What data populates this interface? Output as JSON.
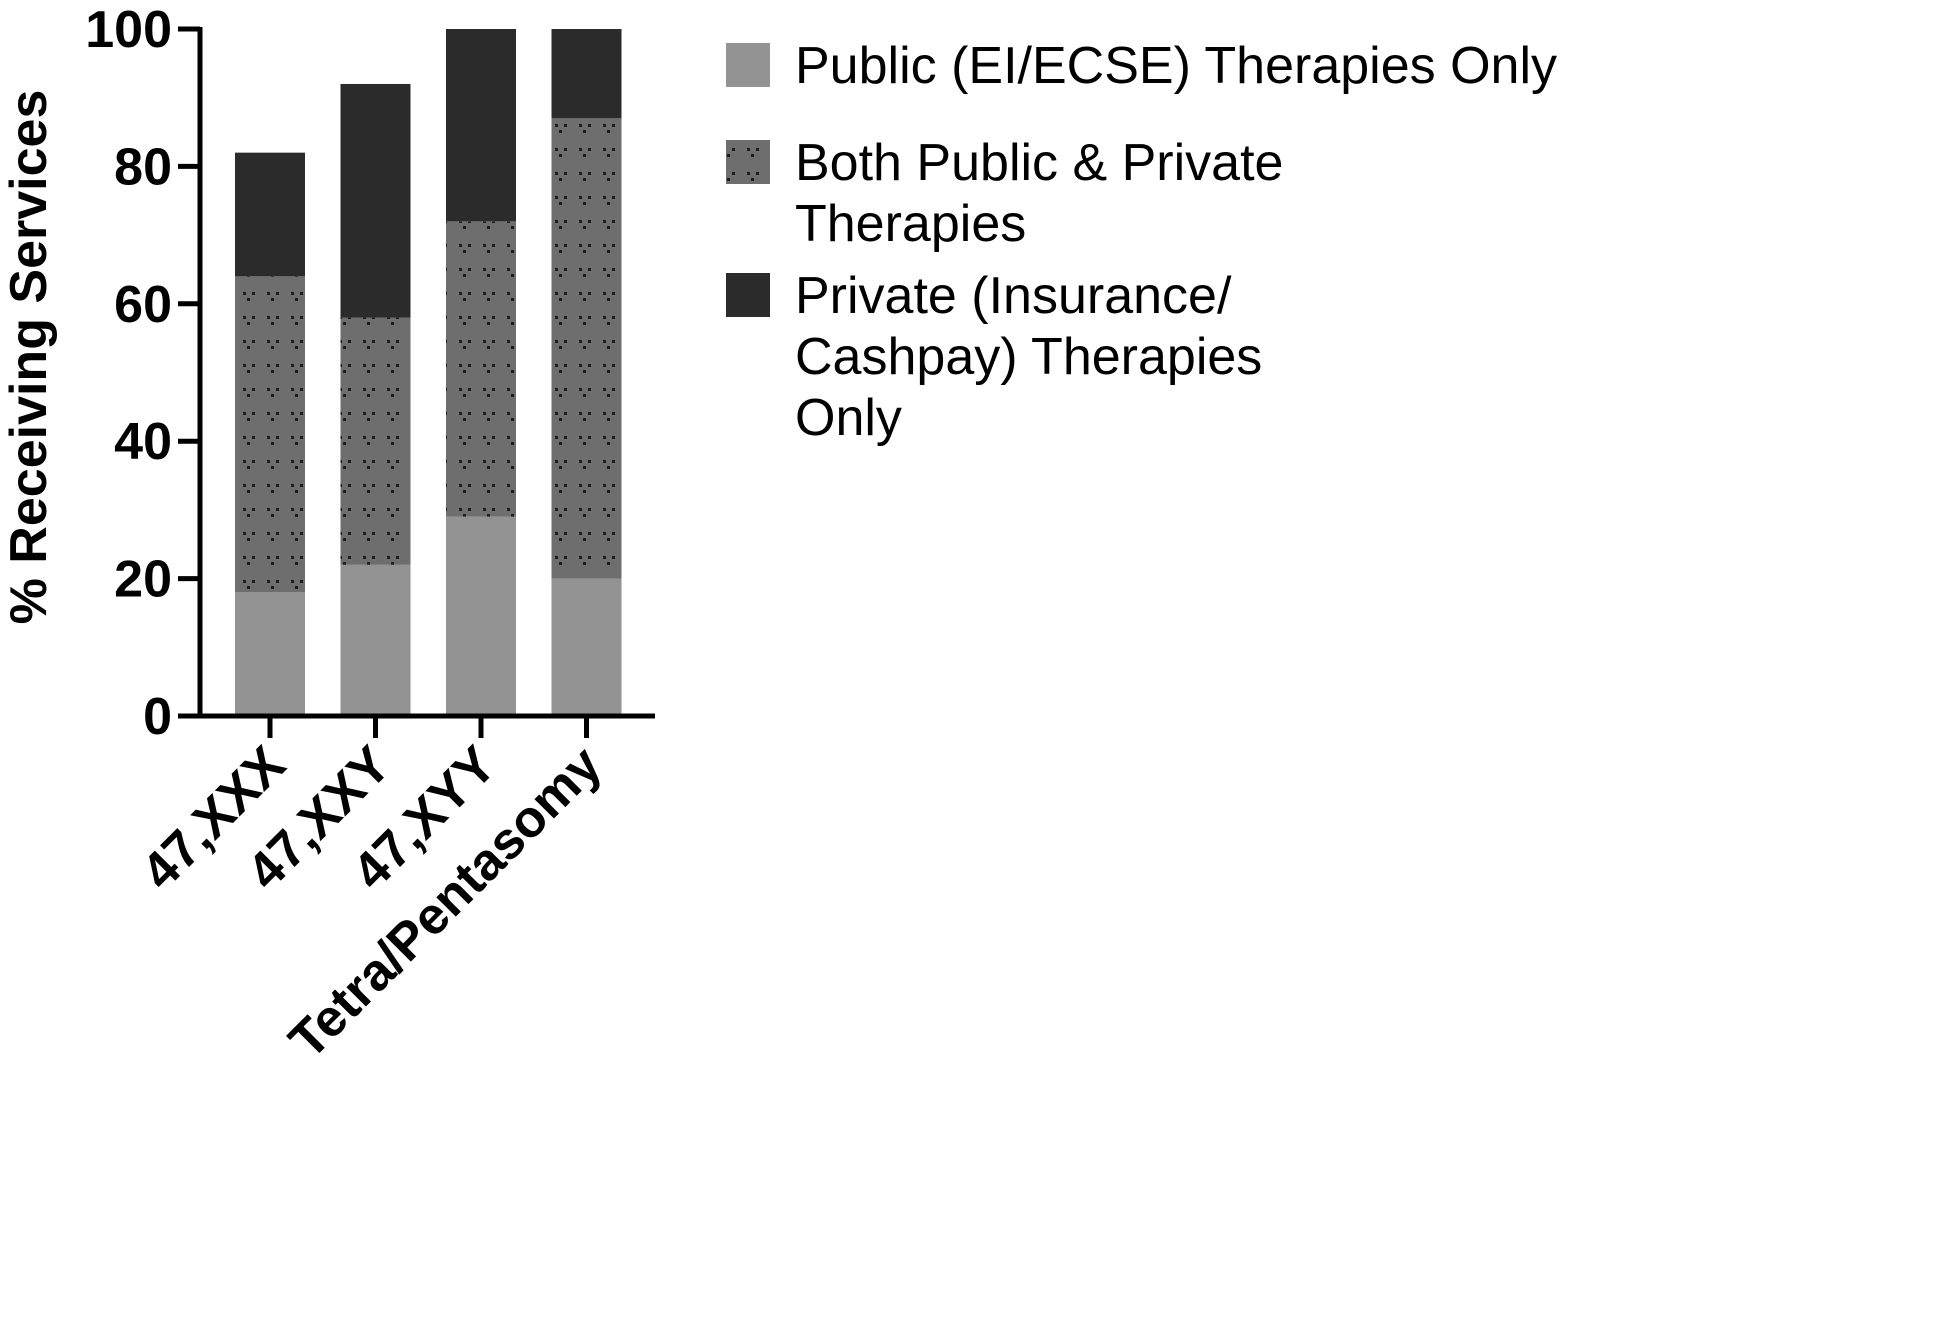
{
  "chart_data": {
    "type": "bar",
    "stacked": true,
    "categories": [
      "47,XXX",
      "47,XXY",
      "47,XYY",
      "Tetra/Pentasomy"
    ],
    "series": [
      {
        "name": "Public (EI/ECSE) Therapies Only",
        "legend_lines": [
          "Public (EI/ECSE) Therapies Only"
        ],
        "values": [
          18,
          22,
          29,
          20
        ],
        "color": "#939393",
        "pattern": "solid"
      },
      {
        "name": "Both Public & Private Therapies",
        "legend_lines": [
          "Both Public & Private",
          "Therapies"
        ],
        "values": [
          46,
          36,
          43,
          67
        ],
        "color": "#6e6e6e",
        "pattern": "dotted"
      },
      {
        "name": "Private (Insurance/ Cashpay) Therapies Only",
        "legend_lines": [
          "Private (Insurance/",
          "Cashpay) Therapies",
          "Only"
        ],
        "values": [
          18,
          34,
          28,
          13
        ],
        "color": "#2b2b2b",
        "pattern": "solid"
      }
    ],
    "ylabel": "% Receiving Services",
    "xlabel": "",
    "title": "",
    "ylim": [
      0,
      100
    ],
    "yticks": [
      0,
      20,
      40,
      60,
      80,
      100
    ],
    "grid": false,
    "legend_position": "right"
  }
}
